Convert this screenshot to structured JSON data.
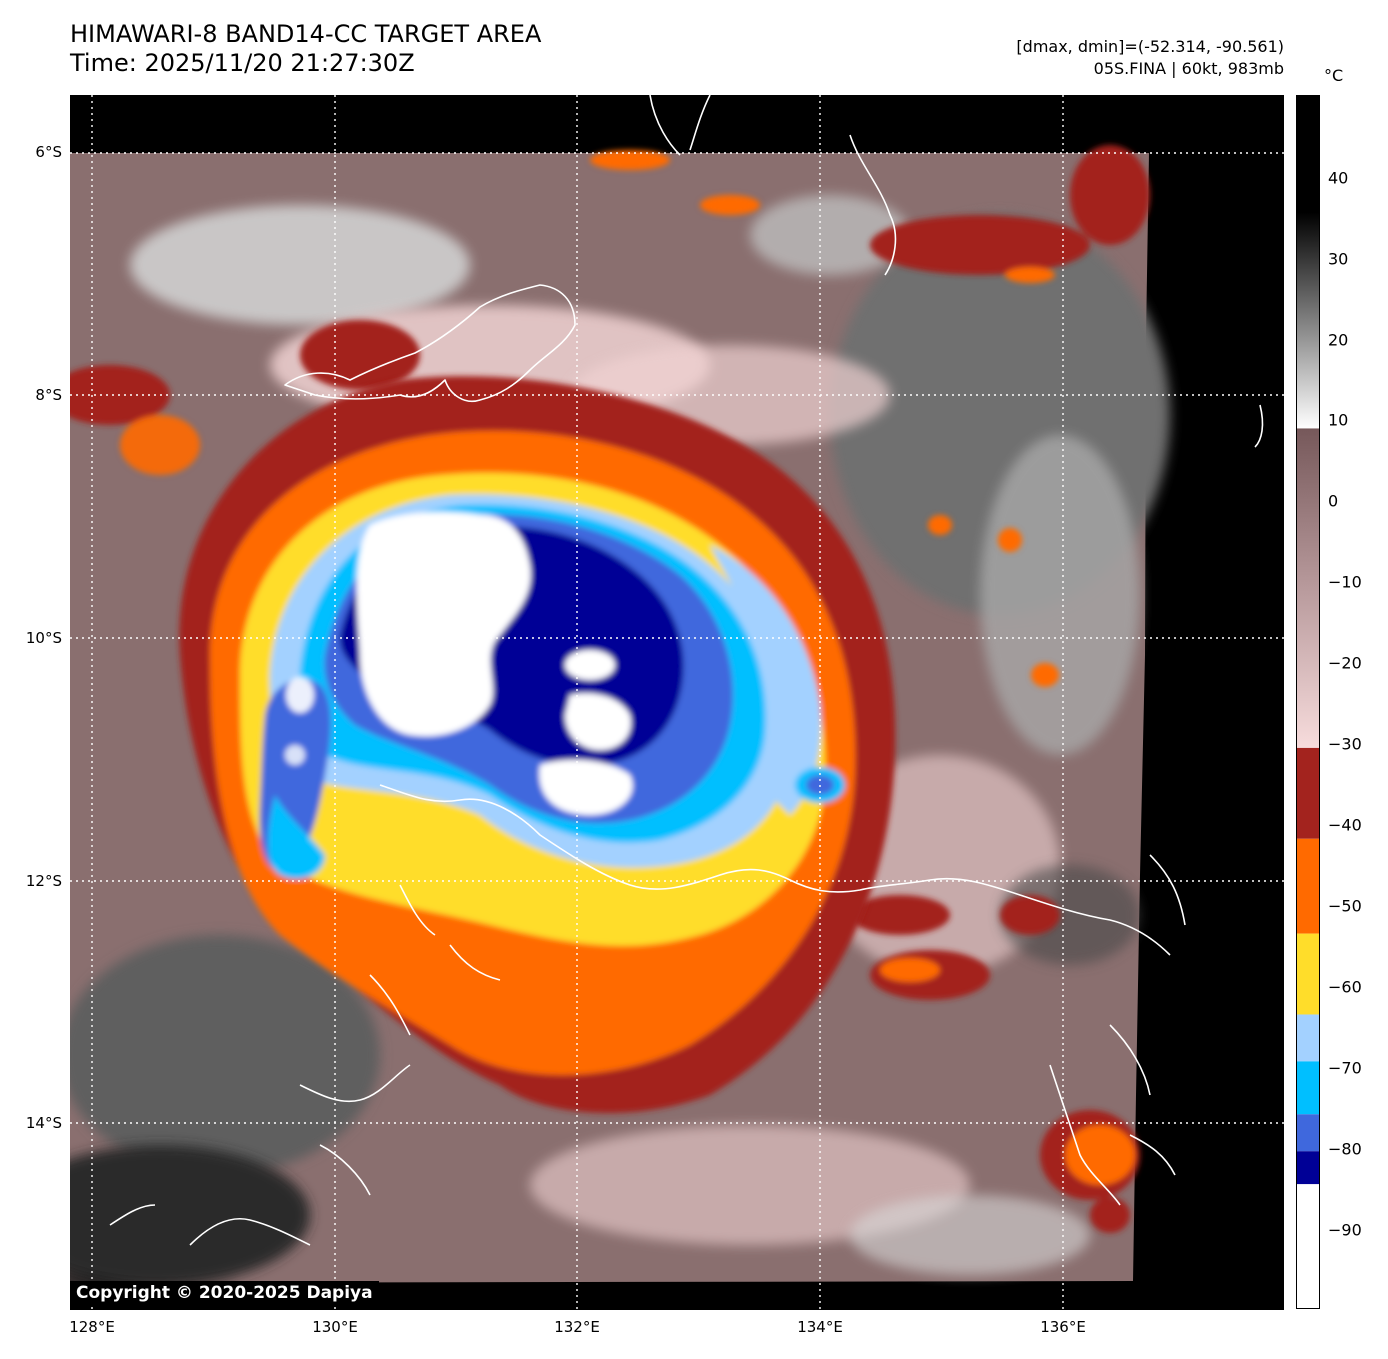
{
  "header": {
    "title_line1": "HIMAWARI-8 BAND14-CC TARGET AREA",
    "title_line2": "Time: 2025/11/20 21:27:30Z",
    "range_text": "[dmax, dmin]=(-52.314, -90.561)",
    "storm_text": "05S.FINA | 60kt, 983mb"
  },
  "map": {
    "lat_labels": [
      "6°S",
      "8°S",
      "10°S",
      "12°S",
      "14°S"
    ],
    "lon_labels": [
      "128°E",
      "130°E",
      "132°E",
      "134°E",
      "136°E"
    ],
    "copyright": "Copyright © 2020-2025 Dapiya",
    "colors": {
      "cold_white": "#ffffff",
      "navy": "#000096",
      "royal_blue": "#3f68dd",
      "sky_blue": "#00bfff",
      "pale_blue": "#a3d1ff",
      "yellow": "#ffdd2a",
      "orange": "#ff6a00",
      "dark_red": "#a3231e",
      "pink": "#f2cfcf",
      "mauve": "#8a6c6c",
      "grey": "#6c6c6c",
      "coastline": "#ffffff"
    }
  },
  "colorbar": {
    "unit": "°C",
    "ticks": [
      "40",
      "30",
      "20",
      "10",
      "0",
      "−10",
      "−20",
      "−30",
      "−40",
      "−50",
      "−60",
      "−70",
      "−80",
      "−90"
    ]
  }
}
